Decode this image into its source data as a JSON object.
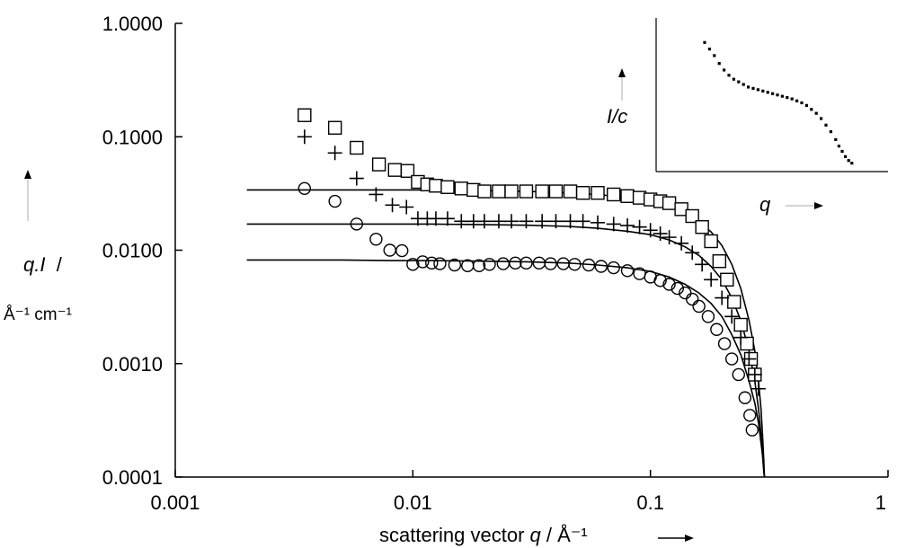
{
  "chart_data": [
    {
      "type": "scatter",
      "title": "",
      "xlabel": "scattering vector",
      "xlabel_symbol": "q",
      "xlabel_unit": "Å⁻¹",
      "ylabel_symbol": "q.I",
      "ylabel_unit": "Å⁻¹ cm⁻¹",
      "x_scale": "log",
      "y_scale": "log",
      "xlim": [
        0.001,
        1
      ],
      "ylim": [
        0.0001,
        1
      ],
      "x_ticks": [
        0.001,
        0.01,
        0.1,
        1
      ],
      "x_tick_labels": [
        "0.001",
        "0.01",
        "0.1",
        "1"
      ],
      "y_ticks": [
        0.0001,
        0.001,
        0.01,
        0.1,
        1
      ],
      "y_tick_labels": [
        "0.0001",
        "0.0010",
        "0.0100",
        "0.1000",
        "1.0000"
      ],
      "grid": false,
      "series": [
        {
          "marker": "square",
          "x": [
            0.0035,
            0.0047,
            0.0058,
            0.0072,
            0.0084,
            0.0095,
            0.0105,
            0.0115,
            0.0125,
            0.014,
            0.016,
            0.018,
            0.02,
            0.023,
            0.026,
            0.03,
            0.035,
            0.04,
            0.046,
            0.052,
            0.06,
            0.07,
            0.08,
            0.09,
            0.1,
            0.11,
            0.12,
            0.135,
            0.15,
            0.165,
            0.18,
            0.195,
            0.21,
            0.225,
            0.24,
            0.255,
            0.265,
            0.275
          ],
          "y": [
            0.155,
            0.12,
            0.08,
            0.057,
            0.051,
            0.05,
            0.04,
            0.038,
            0.037,
            0.036,
            0.035,
            0.034,
            0.033,
            0.033,
            0.033,
            0.033,
            0.033,
            0.033,
            0.033,
            0.032,
            0.032,
            0.031,
            0.03,
            0.029,
            0.028,
            0.027,
            0.026,
            0.023,
            0.02,
            0.016,
            0.012,
            0.008,
            0.0055,
            0.0035,
            0.0022,
            0.0015,
            0.0011,
            0.0008
          ]
        },
        {
          "marker": "plus",
          "x": [
            0.0035,
            0.0047,
            0.0058,
            0.007,
            0.0082,
            0.0094,
            0.0105,
            0.0115,
            0.0125,
            0.014,
            0.016,
            0.018,
            0.02,
            0.023,
            0.026,
            0.03,
            0.035,
            0.04,
            0.046,
            0.052,
            0.06,
            0.07,
            0.08,
            0.09,
            0.1,
            0.11,
            0.12,
            0.135,
            0.15,
            0.165,
            0.18,
            0.2,
            0.22,
            0.24,
            0.26,
            0.275,
            0.285
          ],
          "y": [
            0.1,
            0.072,
            0.043,
            0.031,
            0.025,
            0.024,
            0.019,
            0.019,
            0.019,
            0.019,
            0.018,
            0.018,
            0.018,
            0.018,
            0.018,
            0.018,
            0.018,
            0.018,
            0.018,
            0.018,
            0.0175,
            0.017,
            0.0165,
            0.016,
            0.015,
            0.014,
            0.013,
            0.0115,
            0.0095,
            0.0075,
            0.0055,
            0.0038,
            0.0026,
            0.0017,
            0.0011,
            0.0008,
            0.0006
          ]
        },
        {
          "marker": "circle",
          "x": [
            0.0035,
            0.0047,
            0.0058,
            0.007,
            0.008,
            0.009,
            0.01,
            0.011,
            0.012,
            0.013,
            0.015,
            0.017,
            0.019,
            0.021,
            0.024,
            0.027,
            0.03,
            0.034,
            0.038,
            0.043,
            0.048,
            0.055,
            0.062,
            0.07,
            0.08,
            0.09,
            0.1,
            0.11,
            0.12,
            0.13,
            0.14,
            0.15,
            0.16,
            0.175,
            0.19,
            0.205,
            0.22,
            0.235,
            0.25,
            0.262,
            0.268
          ],
          "y": [
            0.035,
            0.027,
            0.017,
            0.0125,
            0.01,
            0.0099,
            0.0075,
            0.0079,
            0.0077,
            0.0076,
            0.0074,
            0.0073,
            0.0073,
            0.0075,
            0.0076,
            0.0077,
            0.0077,
            0.0077,
            0.0076,
            0.0076,
            0.0075,
            0.0074,
            0.0072,
            0.007,
            0.0066,
            0.0062,
            0.0058,
            0.0054,
            0.005,
            0.0046,
            0.0042,
            0.0037,
            0.0032,
            0.0026,
            0.002,
            0.0015,
            0.0011,
            0.0008,
            0.0005,
            0.00035,
            0.00026
          ]
        }
      ],
      "fits": [
        {
          "x": [
            0.002,
            0.003,
            0.005,
            0.008,
            0.012,
            0.02,
            0.03,
            0.045,
            0.06,
            0.08,
            0.1,
            0.12,
            0.14,
            0.16,
            0.18,
            0.2,
            0.22,
            0.24,
            0.26,
            0.275,
            0.285,
            0.292,
            0.297,
            0.3,
            0.302
          ],
          "y": [
            0.034,
            0.034,
            0.034,
            0.034,
            0.034,
            0.0335,
            0.033,
            0.032,
            0.031,
            0.029,
            0.027,
            0.0245,
            0.0215,
            0.018,
            0.0145,
            0.011,
            0.0075,
            0.0046,
            0.0024,
            0.0013,
            0.0007,
            0.0004,
            0.00022,
            0.00014,
            0.0001
          ]
        },
        {
          "x": [
            0.002,
            0.003,
            0.005,
            0.008,
            0.012,
            0.02,
            0.03,
            0.045,
            0.06,
            0.08,
            0.1,
            0.12,
            0.14,
            0.16,
            0.18,
            0.2,
            0.22,
            0.24,
            0.26,
            0.275,
            0.285,
            0.292,
            0.297,
            0.3,
            0.302
          ],
          "y": [
            0.017,
            0.017,
            0.017,
            0.017,
            0.017,
            0.0168,
            0.0166,
            0.0162,
            0.0156,
            0.0147,
            0.0137,
            0.0123,
            0.0107,
            0.009,
            0.0072,
            0.0055,
            0.0038,
            0.0024,
            0.0013,
            0.0007,
            0.0004,
            0.00024,
            0.00015,
            0.00011,
            0.0001
          ]
        },
        {
          "x": [
            0.002,
            0.003,
            0.005,
            0.008,
            0.012,
            0.02,
            0.03,
            0.045,
            0.06,
            0.08,
            0.1,
            0.12,
            0.14,
            0.16,
            0.18,
            0.2,
            0.22,
            0.24,
            0.26,
            0.275,
            0.285,
            0.292,
            0.297,
            0.3,
            0.302
          ],
          "y": [
            0.0082,
            0.0082,
            0.0082,
            0.0081,
            0.0081,
            0.008,
            0.0079,
            0.0077,
            0.0074,
            0.007,
            0.0065,
            0.0058,
            0.005,
            0.0042,
            0.0034,
            0.0026,
            0.0018,
            0.0012,
            0.0007,
            0.00045,
            0.0003,
            0.0002,
            0.00015,
            0.00012,
            0.0001
          ]
        }
      ]
    },
    {
      "type": "scatter",
      "title": "",
      "inset": true,
      "xlabel": "q",
      "ylabel": "I/c",
      "x_ticks": [],
      "y_ticks": [],
      "grid": false,
      "series": [
        {
          "marker": "dot",
          "x": [
            0.05,
            0.08,
            0.11,
            0.14,
            0.17,
            0.2,
            0.23,
            0.26,
            0.29,
            0.32,
            0.35,
            0.38,
            0.41,
            0.44,
            0.47,
            0.5,
            0.53,
            0.56,
            0.59,
            0.62,
            0.65,
            0.68,
            0.71,
            0.74,
            0.77,
            0.8,
            0.83,
            0.86,
            0.88,
            0.9,
            0.92,
            0.94,
            0.96
          ],
          "y": [
            0.95,
            0.9,
            0.85,
            0.79,
            0.74,
            0.7,
            0.67,
            0.65,
            0.63,
            0.61,
            0.6,
            0.59,
            0.58,
            0.57,
            0.56,
            0.55,
            0.54,
            0.53,
            0.52,
            0.505,
            0.49,
            0.47,
            0.44,
            0.41,
            0.37,
            0.32,
            0.27,
            0.21,
            0.16,
            0.12,
            0.08,
            0.05,
            0.03
          ]
        }
      ]
    }
  ]
}
